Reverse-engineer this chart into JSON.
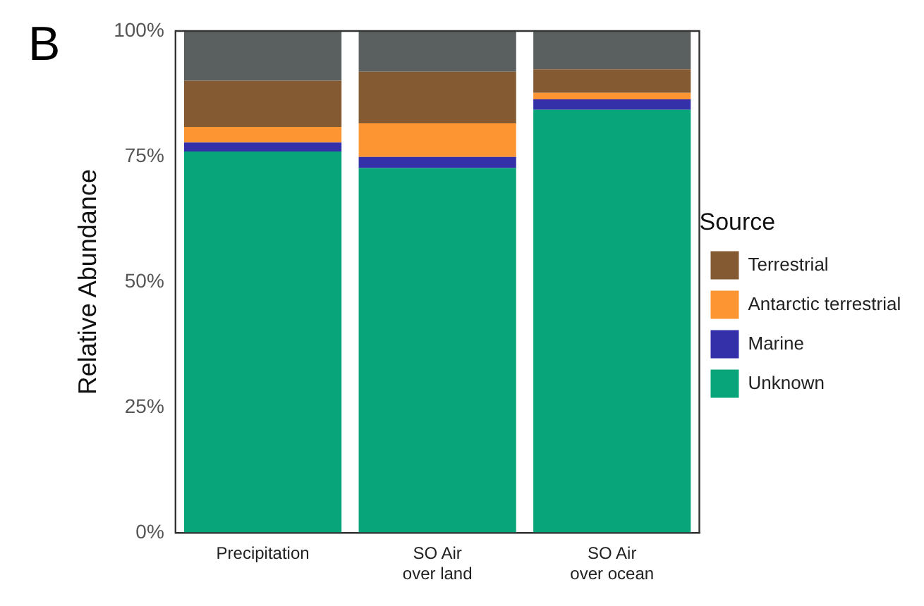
{
  "chart_data": {
    "type": "bar",
    "stacked": true,
    "ylabel": "Relative Abundance",
    "legend_title": "Source",
    "legend": "right",
    "grid": false,
    "annotations": [
      "B"
    ],
    "categories": [
      "Precipitation",
      "SO Air\nover land",
      "SO Air\nover ocean"
    ],
    "ylim": [
      0,
      100
    ],
    "yticks": [
      {
        "value": 0,
        "label": "0%"
      },
      {
        "value": 25,
        "label": "25%"
      },
      {
        "value": 50,
        "label": "50%"
      },
      {
        "value": 75,
        "label": "75%"
      },
      {
        "value": 100,
        "label": "100%"
      }
    ],
    "series": [
      {
        "name": "Unknown",
        "color": "#08a57a",
        "values": [
          76.0,
          72.7,
          84.3
        ]
      },
      {
        "name": "Marine",
        "color": "#3330aa",
        "values": [
          1.8,
          2.2,
          2.1
        ]
      },
      {
        "name": "Antarctic terrestrial",
        "color": "#fd9632",
        "values": [
          3.1,
          6.7,
          1.3
        ]
      },
      {
        "name": "Terrestrial",
        "color": "#845a33",
        "values": [
          9.2,
          10.3,
          4.7
        ]
      },
      {
        "color": "#5a6060",
        "values": [
          9.9,
          8.1,
          7.6
        ]
      }
    ]
  }
}
